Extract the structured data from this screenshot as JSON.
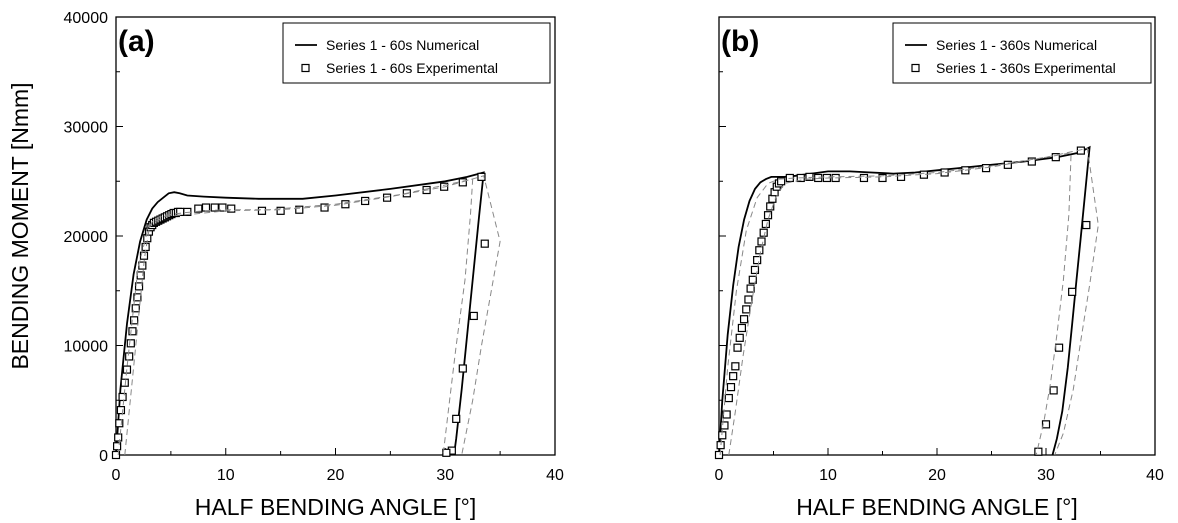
{
  "chart_data": [
    {
      "type": "line",
      "panel_label": "(a)",
      "xlabel": "HALF BENDING ANGLE [°]",
      "ylabel": "BENDING MOMENT [Nmm]",
      "xlim": [
        0,
        40
      ],
      "ylim": [
        0,
        40000
      ],
      "xticks": [
        "0",
        "10",
        "20",
        "30",
        "40"
      ],
      "yticks": [
        "0",
        "10000",
        "20000",
        "30000",
        "40000"
      ],
      "grid": false,
      "legend_position": "top-right",
      "series": [
        {
          "name": "Series 1 - 60s Numerical",
          "style": "solid",
          "color": "#000000",
          "x": [
            0,
            0.4,
            1.0,
            1.6,
            2.2,
            2.8,
            3.3,
            3.8,
            4.3,
            4.8,
            5.3,
            5.8,
            6.5,
            8,
            10,
            13,
            17,
            20,
            25,
            30,
            32,
            33.5,
            33.1,
            32.7,
            32.3,
            31.9,
            31.5,
            31.0,
            30.8
          ],
          "y": [
            0,
            6000,
            12000,
            16500,
            19500,
            21500,
            22500,
            23100,
            23500,
            23900,
            24000,
            23900,
            23700,
            23600,
            23500,
            23400,
            23400,
            23700,
            24300,
            25000,
            25400,
            25800,
            22000,
            18000,
            14000,
            10000,
            6000,
            1500,
            0
          ]
        },
        {
          "name": "Series 1 - 60s Experimental",
          "style": "markers-open-square",
          "color": "#000000",
          "x": [
            0,
            0.1,
            0.2,
            0.3,
            0.45,
            0.6,
            0.8,
            1.0,
            1.2,
            1.35,
            1.5,
            1.65,
            1.8,
            1.95,
            2.1,
            2.25,
            2.4,
            2.55,
            2.7,
            2.85,
            3.0,
            3.15,
            3.3,
            3.45,
            3.65,
            3.85,
            4.05,
            4.25,
            4.45,
            4.65,
            4.85,
            5.05,
            5.25,
            5.45,
            5.65,
            5.85,
            6.5,
            7.5,
            8.2,
            9.0,
            9.7,
            10.5,
            13.3,
            15.0,
            16.7,
            19.0,
            20.9,
            22.7,
            24.7,
            26.5,
            28.3,
            29.9,
            31.6,
            33.3,
            33.6,
            32.6,
            31.6,
            31.0,
            30.6,
            30.1
          ],
          "y": [
            0,
            800,
            1600,
            2900,
            4100,
            5300,
            6600,
            7800,
            9000,
            10200,
            11300,
            12300,
            13400,
            14400,
            15400,
            16400,
            17300,
            18200,
            19000,
            19800,
            20400,
            20800,
            21000,
            21200,
            21300,
            21400,
            21500,
            21600,
            21700,
            21800,
            21900,
            22000,
            22100,
            22100,
            22200,
            22200,
            22200,
            22500,
            22600,
            22600,
            22600,
            22500,
            22300,
            22300,
            22400,
            22600,
            22900,
            23200,
            23500,
            23900,
            24200,
            24500,
            24900,
            25400,
            19300,
            12700,
            7900,
            3300,
            400,
            200
          ]
        },
        {
          "name": "",
          "style": "dashed",
          "color": "#888888",
          "x": [
            0.2,
            1.0,
            2.0,
            3.0,
            4.5,
            7,
            10,
            15,
            20,
            25,
            30,
            33.5,
            35.0,
            34.2,
            33.3,
            32.5,
            31.5
          ],
          "y": [
            0,
            8000,
            17000,
            21000,
            21800,
            22000,
            22300,
            22400,
            22800,
            23600,
            24500,
            25500,
            19500,
            15000,
            10000,
            5000,
            0
          ]
        },
        {
          "name": "",
          "style": "dashed",
          "color": "#888888",
          "x": [
            0.8,
            1.2,
            1.7,
            2.2,
            2.6,
            3.0,
            3.3,
            3.8,
            4.5,
            6,
            8,
            10,
            14,
            20,
            26,
            32.5,
            32.3,
            31.8,
            31.0,
            30.4,
            29.8
          ],
          "y": [
            0,
            4000,
            9000,
            14000,
            18000,
            20500,
            21300,
            21700,
            21900,
            22100,
            22300,
            22400,
            22400,
            22900,
            23800,
            25200,
            22000,
            16000,
            10000,
            5000,
            0
          ]
        }
      ]
    },
    {
      "type": "line",
      "panel_label": "(b)",
      "xlabel": "HALF BENDING ANGLE [°]",
      "ylabel": "",
      "xlim": [
        0,
        40
      ],
      "ylim": [
        0,
        40000
      ],
      "xticks": [
        "0",
        "10",
        "20",
        "30",
        "40"
      ],
      "yticks": [],
      "grid": false,
      "legend_position": "top-right",
      "series": [
        {
          "name": "Series 1 - 360s Numerical",
          "style": "solid",
          "color": "#000000",
          "x": [
            0,
            0.3,
            0.8,
            1.3,
            1.8,
            2.3,
            2.8,
            3.3,
            3.8,
            4.3,
            4.8,
            5.3,
            6.0,
            7.0,
            8.5,
            10,
            12,
            14,
            16,
            18,
            20,
            22,
            25,
            28,
            31,
            33,
            34,
            33.6,
            33.2,
            32.8,
            32.4,
            32.0,
            31.5,
            31.0,
            30.6
          ],
          "y": [
            0,
            5000,
            11000,
            15500,
            19000,
            21500,
            23200,
            24300,
            24900,
            25200,
            25400,
            25400,
            25400,
            25500,
            25700,
            25900,
            25900,
            25800,
            25700,
            25800,
            26000,
            26200,
            26500,
            26800,
            27200,
            27600,
            28100,
            24000,
            20000,
            16000,
            12000,
            8000,
            4000,
            1500,
            0
          ]
        },
        {
          "name": "Series 1 - 360s Experimental",
          "style": "markers-open-square",
          "color": "#000000",
          "x": [
            0,
            0.15,
            0.3,
            0.5,
            0.7,
            0.9,
            1.1,
            1.3,
            1.5,
            1.7,
            1.9,
            2.1,
            2.3,
            2.5,
            2.7,
            2.9,
            3.1,
            3.3,
            3.5,
            3.7,
            3.9,
            4.1,
            4.3,
            4.5,
            4.7,
            4.9,
            5.1,
            5.3,
            5.5,
            5.7,
            6.5,
            7.5,
            8.3,
            9.1,
            9.9,
            10.7,
            13.3,
            15.0,
            16.7,
            18.8,
            20.7,
            22.6,
            24.5,
            26.5,
            28.7,
            30.9,
            33.2,
            33.7,
            32.4,
            31.2,
            30.7,
            30.0,
            29.3
          ],
          "y": [
            0,
            900,
            1800,
            2700,
            3700,
            5200,
            6200,
            7200,
            8100,
            9800,
            10700,
            11600,
            12400,
            13300,
            14200,
            15200,
            16000,
            16900,
            17800,
            18700,
            19500,
            20300,
            21100,
            21900,
            22700,
            23400,
            24000,
            24500,
            24800,
            25000,
            25300,
            25300,
            25400,
            25300,
            25300,
            25300,
            25300,
            25300,
            25400,
            25600,
            25800,
            26000,
            26200,
            26500,
            26800,
            27200,
            27800,
            21000,
            14900,
            9800,
            5900,
            2800,
            300
          ]
        },
        {
          "name": "",
          "style": "dashed",
          "color": "#888888",
          "x": [
            0.1,
            0.8,
            1.6,
            2.5,
            3.5,
            4.5,
            5.5,
            7,
            10,
            15,
            20,
            25,
            30,
            33.8,
            34.8,
            34.0,
            33.2,
            32.5,
            31.6,
            30.8
          ],
          "y": [
            0,
            8000,
            15000,
            20500,
            23500,
            24800,
            25200,
            25300,
            25400,
            25500,
            25800,
            26400,
            27200,
            28000,
            21000,
            15500,
            10500,
            6000,
            2000,
            0
          ]
        },
        {
          "name": "",
          "style": "dashed",
          "color": "#888888",
          "x": [
            0.9,
            1.5,
            2.2,
            3.0,
            3.8,
            4.5,
            5.2,
            6,
            8,
            10,
            15,
            20,
            25,
            32.3,
            32.1,
            31.6,
            31.0,
            30.4,
            29.8,
            29.1
          ],
          "y": [
            0,
            4000,
            9000,
            14000,
            18500,
            21500,
            23500,
            24800,
            25200,
            25300,
            25400,
            25700,
            26300,
            27600,
            22000,
            16000,
            11000,
            6500,
            3000,
            0
          ]
        }
      ]
    }
  ]
}
